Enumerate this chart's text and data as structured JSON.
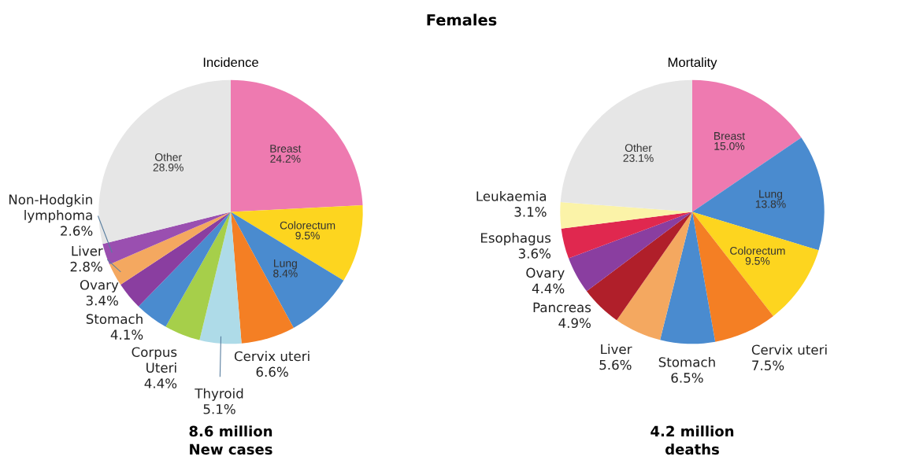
{
  "chart_data": [
    {
      "type": "pie",
      "title": "Incidence",
      "annotations": [
        "Females",
        "8.6 million\nNew cases"
      ],
      "value_labels": [
        "24.2%",
        "9.5%",
        "8.4%",
        "6.6%",
        "5.1%",
        "4.4%",
        "4.1%",
        "3.4%",
        "2.8%",
        "2.6%",
        "28.9%"
      ],
      "categories": [
        "Breast",
        "Colorectum",
        "Lung",
        "Cervix uteri",
        "Thyroid",
        "Corpus\nUteri",
        "Stomach",
        "Ovary",
        "Liver",
        "Non-Hodgkin\nlymphoma",
        "Other"
      ],
      "values": [
        24.2,
        9.5,
        8.4,
        6.6,
        5.1,
        4.4,
        4.1,
        3.4,
        2.8,
        2.6,
        28.9
      ],
      "colors": [
        "#ee7ab0",
        "#fdd51f",
        "#4a8bcf",
        "#f47f24",
        "#aedbe8",
        "#a6cf4a",
        "#4a8bcf",
        "#8a3ea0",
        "#f4a860",
        "#9a4fb0",
        "#e6e6e6"
      ]
    },
    {
      "type": "pie",
      "title": "Mortality",
      "annotations": [
        "4.2 million\ndeaths"
      ],
      "value_labels": [
        "15.0%",
        "13.8%",
        "9.5%",
        "7.5%",
        "6.5%",
        "5.6%",
        "4.9%",
        "4.4%",
        "3.6%",
        "3.1%",
        "23.1%"
      ],
      "categories": [
        "Breast",
        "Lung",
        "Colorectum",
        "Cervix uteri",
        "Stomach",
        "Liver",
        "Pancreas",
        "Ovary",
        "Esophagus",
        "Leukaemia",
        "Other"
      ],
      "values": [
        15.0,
        13.8,
        9.5,
        7.5,
        6.5,
        5.6,
        4.9,
        4.4,
        3.6,
        3.1,
        23.1
      ],
      "colors": [
        "#ee7ab0",
        "#4a8bcf",
        "#fdd51f",
        "#f47f24",
        "#4a8bcf",
        "#f4a860",
        "#b01f2a",
        "#8a3ea0",
        "#e0284f",
        "#fbf3a8",
        "#e6e6e6"
      ]
    }
  ]
}
